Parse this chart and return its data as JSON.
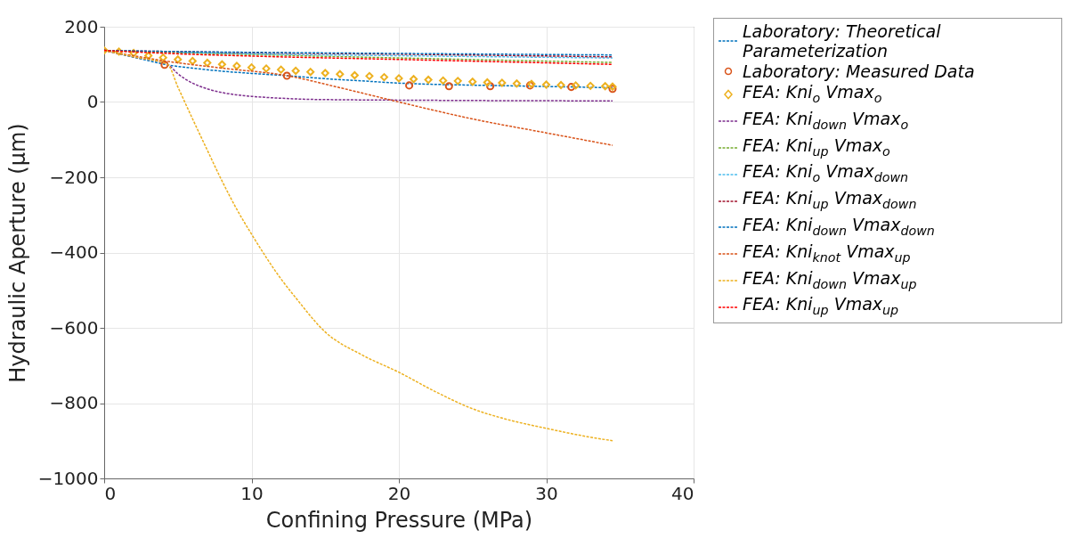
{
  "chart_data": {
    "type": "line",
    "xlabel": "Confining Pressure (MPa)",
    "ylabel": "Hydraulic Aperture (μm)",
    "xlim": [
      0,
      40
    ],
    "xticks": [
      0,
      10,
      20,
      30,
      40
    ],
    "ylim": [
      -1000,
      200
    ],
    "yticks": [
      {
        "value": -1000,
        "label": "−1000"
      },
      {
        "value": -800,
        "label": "−800"
      },
      {
        "value": -600,
        "label": "−600"
      },
      {
        "value": -400,
        "label": "−400"
      },
      {
        "value": -200,
        "label": "−200"
      },
      0,
      200
    ],
    "grid": true,
    "legend": "right",
    "series": [
      {
        "name": "Laboratory: Theoretical Parameterization",
        "line_style": "dashed",
        "color": "#0072bd",
        "x": [
          0,
          1,
          2,
          3,
          4.1,
          6,
          8,
          10,
          12.4,
          15,
          17.5,
          20.7,
          23.4,
          26.2,
          28.9,
          31.7,
          34.5
        ],
        "values": [
          137,
          128,
          119,
          110,
          100,
          90,
          82,
          76,
          70,
          62,
          56,
          49,
          46,
          44,
          42,
          40,
          38
        ]
      },
      {
        "name": "Laboratory: Measured Data",
        "type": "scatter",
        "marker": "circle",
        "color": "#d95319",
        "x": [
          4.1,
          12.4,
          20.7,
          23.4,
          26.2,
          28.9,
          31.7,
          34.5
        ],
        "values": [
          99,
          70,
          44,
          42,
          42,
          44,
          40,
          35
        ]
      },
      {
        "name": "FEA: Kni$_{o}$ Vmax$_{o}$",
        "type": "scatter",
        "marker": "diamond",
        "color": "#edb120",
        "x": [
          0,
          1,
          2,
          3,
          4,
          5,
          6,
          7,
          8,
          9,
          10,
          11,
          12,
          13,
          14,
          15,
          16,
          17,
          18,
          19,
          20,
          21,
          22,
          23,
          24,
          25,
          26,
          27,
          28,
          29,
          30,
          31,
          32,
          33,
          34,
          34.5
        ],
        "values": [
          137,
          134,
          130,
          123,
          118,
          113,
          109,
          104,
          100,
          96,
          92,
          89,
          86,
          83,
          80,
          77,
          74,
          71,
          69,
          66,
          63,
          61,
          59,
          57,
          56,
          54,
          52,
          51,
          49,
          48,
          46,
          45,
          44,
          43,
          42,
          41
        ]
      },
      {
        "name": "FEA: Kni$_{down}$ Vmax$_{o}$",
        "line_style": "dashed",
        "color": "#7e2f8e",
        "x": [
          0,
          2,
          4.3,
          5,
          6,
          7,
          8,
          9,
          10,
          12,
          14,
          16,
          20,
          25,
          34.5
        ],
        "values": [
          137,
          120,
          100,
          75,
          50,
          35,
          25,
          19,
          15,
          10,
          7,
          6,
          5,
          4,
          3
        ]
      },
      {
        "name": "FEA: Kni$_{up}$ Vmax$_{o}$",
        "line_style": "dashed",
        "color": "#77ac30",
        "x": [
          0,
          5,
          10,
          20,
          34.5
        ],
        "values": [
          137,
          131,
          126,
          117,
          105
        ]
      },
      {
        "name": "FEA: Kni$_{o}$ Vmax$_{down}$",
        "line_style": "dashed",
        "color": "#4dbeee",
        "x": [
          5,
          10,
          20,
          34.5
        ],
        "values": [
          132,
          128,
          123,
          117
        ]
      },
      {
        "name": "FEA: Kni$_{up}$ Vmax$_{down}$",
        "line_style": "dashed",
        "color": "#a2142f",
        "x": [
          0,
          5,
          10,
          20,
          34.5
        ],
        "values": [
          137,
          134,
          131,
          127,
          120
        ]
      },
      {
        "name": "FEA: Kni$_{down}$ Vmax$_{down}$",
        "line_style": "dashed",
        "color": "#0072bd",
        "x": [
          0,
          5,
          10,
          20,
          34.5
        ],
        "values": [
          137,
          134,
          132,
          129,
          125
        ]
      },
      {
        "name": "FEA: Kni$_{knot}$ Vmax$_{up}$",
        "line_style": "dashed",
        "color": "#d95319",
        "x": [
          0,
          4.3,
          8,
          12.4,
          16,
          20,
          25,
          30,
          34.5
        ],
        "values": [
          137,
          108,
          90,
          70,
          38,
          0,
          -45,
          -82,
          -115
        ]
      },
      {
        "name": "FEA: Kni$_{down}$ Vmax$_{up}$",
        "line_style": "dashed",
        "color": "#edb120",
        "x": [
          0,
          2,
          4.3,
          5,
          6,
          7,
          8,
          9,
          10,
          12,
          13,
          15,
          17.5,
          20,
          22.5,
          25,
          27.5,
          30,
          32.5,
          34.5
        ],
        "values": [
          137,
          120,
          100,
          40,
          -45,
          -128,
          -210,
          -285,
          -351,
          -470,
          -520,
          -611,
          -672,
          -718,
          -770,
          -815,
          -845,
          -867,
          -887,
          -900
        ]
      },
      {
        "name": "FEA: Kni$_{up}$ Vmax$_{up}$",
        "line_style": "dashed",
        "color": "#ff0000",
        "x": [
          0,
          5,
          10,
          20,
          34.5
        ],
        "values": [
          137,
          128,
          122,
          113,
          100
        ]
      }
    ]
  }
}
